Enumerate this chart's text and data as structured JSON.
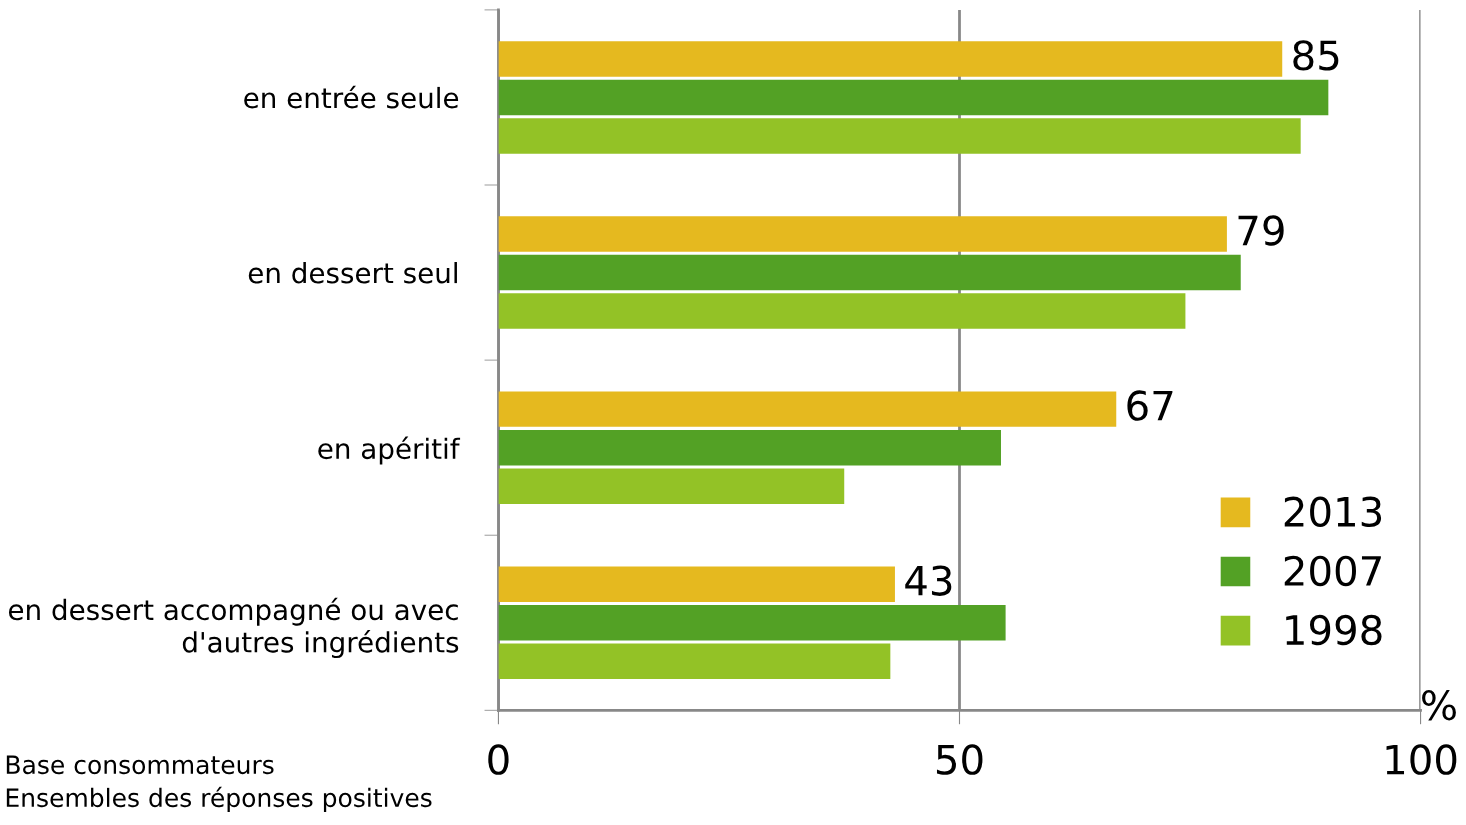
{
  "chart_data": {
    "type": "bar",
    "orientation": "horizontal",
    "categories": [
      "en entrée seule",
      "en dessert seul",
      "en apéritif",
      "en dessert accompagné ou avec\nd'autres ingrédients"
    ],
    "series": [
      {
        "name": "2013",
        "color": "#e5b91f",
        "values": [
          85,
          79,
          67,
          43
        ],
        "value_labels": [
          "85",
          "79",
          "67",
          "43"
        ]
      },
      {
        "name": "2007",
        "color": "#53a125",
        "values": [
          90,
          80.5,
          54.5,
          55
        ]
      },
      {
        "name": "1998",
        "color": "#93c226",
        "values": [
          87,
          74.5,
          37.5,
          42.5
        ]
      }
    ],
    "xlim": [
      0,
      100
    ],
    "xticks": [
      0,
      50,
      100
    ],
    "xlabel": "%",
    "grid": "x",
    "legend": "bottom right",
    "annotations": [
      "Base consommateurs",
      "Ensembles des réponses positives"
    ]
  }
}
